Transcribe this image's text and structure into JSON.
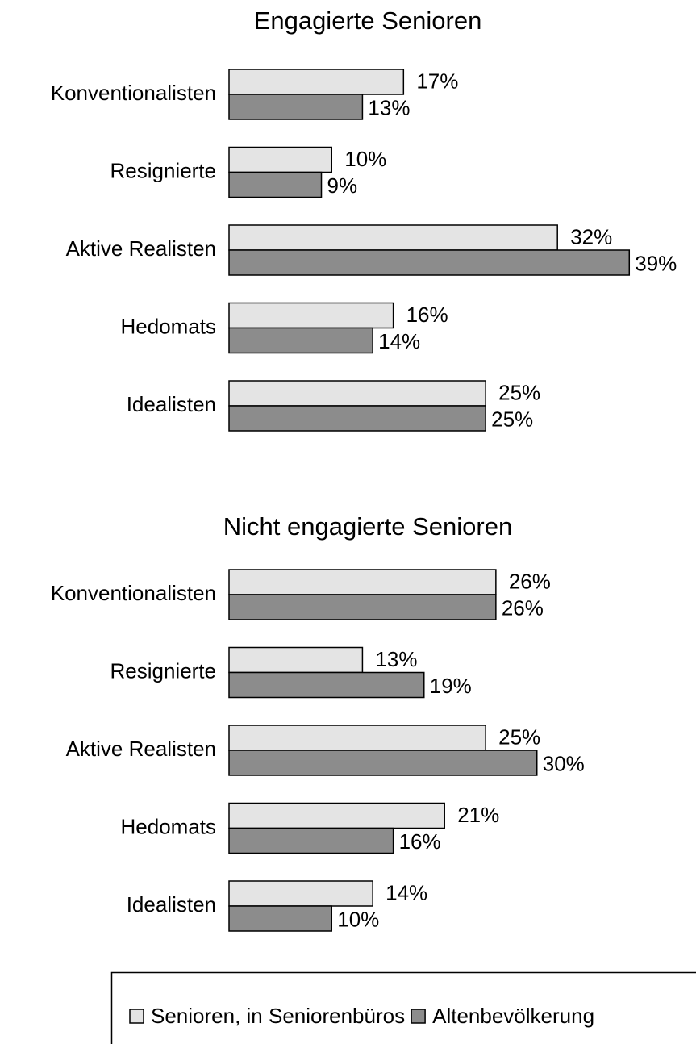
{
  "chart_data": {
    "type": "bar",
    "orientation": "horizontal",
    "xlim": [
      0,
      40
    ],
    "series": [
      {
        "name": "Senioren, in Seniorenbüros",
        "color": "#e4e4e4"
      },
      {
        "name": "Altenbevölkerung",
        "color": "#8c8c8c"
      }
    ],
    "panels": [
      {
        "title": "Engagierte Senioren",
        "categories": [
          "Konventionalisten",
          "Resignierte",
          "Aktive Realisten",
          "Hedomats",
          "Idealisten"
        ],
        "series": [
          {
            "values": [
              17,
              10,
              32,
              16,
              25
            ],
            "value_labels": [
              "17%",
              "10%",
              "32%",
              "16%",
              "25%"
            ]
          },
          {
            "values": [
              13,
              9,
              39,
              14,
              25
            ],
            "value_labels": [
              "13%",
              "9%",
              "39%",
              "14%",
              "25%"
            ]
          }
        ]
      },
      {
        "title": "Nicht engagierte Senioren",
        "categories": [
          "Konventionalisten",
          "Resignierte",
          "Aktive Realisten",
          "Hedomats",
          "Idealisten"
        ],
        "series": [
          {
            "values": [
              26,
              13,
              25,
              21,
              14
            ],
            "value_labels": [
              "26%",
              "13%",
              "25%",
              "21%",
              "14%"
            ]
          },
          {
            "values": [
              26,
              19,
              30,
              16,
              10
            ],
            "value_labels": [
              "26%",
              "19%",
              "30%",
              "16%",
              "10%"
            ]
          }
        ]
      }
    ]
  }
}
